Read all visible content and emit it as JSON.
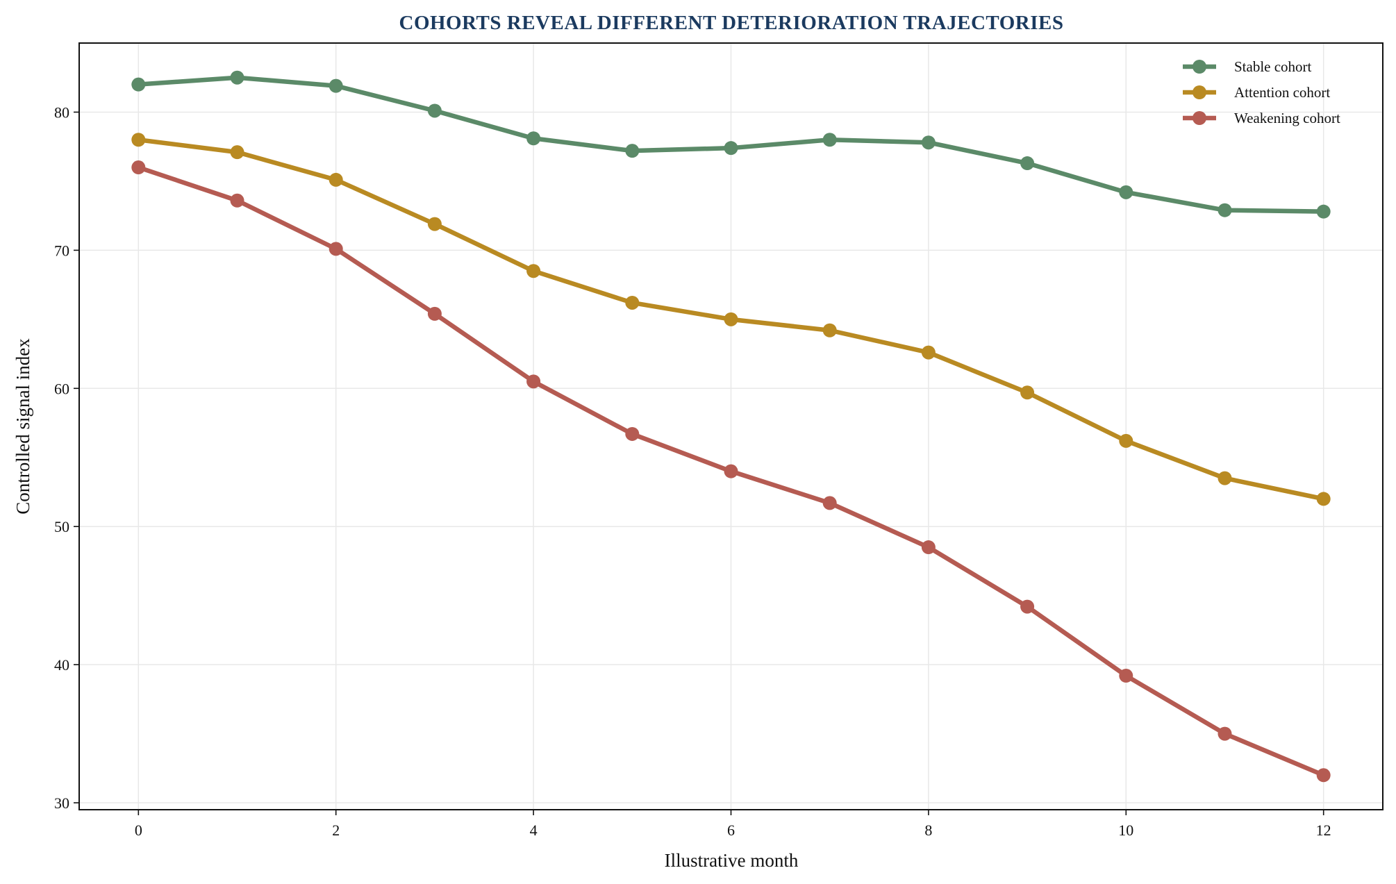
{
  "chart_data": {
    "type": "line",
    "title": "COHORTS REVEAL DIFFERENT DETERIORATION TRAJECTORIES",
    "xlabel": "Illustrative month",
    "ylabel": "Controlled signal index",
    "x": [
      0,
      1,
      2,
      3,
      4,
      5,
      6,
      7,
      8,
      9,
      10,
      11,
      12
    ],
    "xlim": [
      -0.6,
      12.6
    ],
    "ylim": [
      29.5,
      85
    ],
    "xticks": [
      0,
      2,
      4,
      6,
      8,
      10,
      12
    ],
    "yticks": [
      30,
      40,
      50,
      60,
      70,
      80
    ],
    "grid": true,
    "legend_position": "top-right",
    "series": [
      {
        "name": "Stable cohort",
        "color": "#5b8a68",
        "values": [
          82.0,
          82.5,
          81.9,
          80.1,
          78.1,
          77.2,
          77.4,
          78.0,
          77.8,
          76.3,
          74.2,
          72.9,
          72.8
        ]
      },
      {
        "name": "Attention cohort",
        "color": "#b98a22",
        "values": [
          78.0,
          77.1,
          75.1,
          71.9,
          68.5,
          66.2,
          65.0,
          64.2,
          62.6,
          59.7,
          56.2,
          53.5,
          52.0
        ]
      },
      {
        "name": "Weakening cohort",
        "color": "#b55b52",
        "values": [
          76.0,
          73.6,
          70.1,
          65.4,
          60.5,
          56.7,
          54.0,
          51.7,
          48.5,
          44.2,
          39.2,
          35.0,
          32.0
        ]
      }
    ]
  }
}
